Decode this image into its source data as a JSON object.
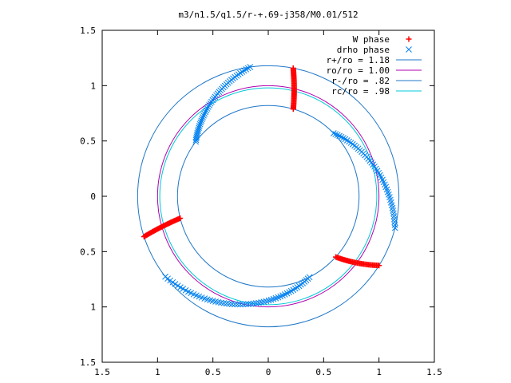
{
  "chart_data": {
    "type": "scatter",
    "title": "m3/n1.5/q1.5/r-+.69-j358/M0.01/512",
    "xlabel": "",
    "ylabel": "",
    "xlim": [
      -1.5,
      1.5
    ],
    "ylim": [
      -1.5,
      1.5
    ],
    "grid": false,
    "legend_position": "top-right",
    "x_ticks": [
      {
        "value": -1.5,
        "label": "1.5"
      },
      {
        "value": -1.0,
        "label": "1"
      },
      {
        "value": -0.5,
        "label": "0.5"
      },
      {
        "value": 0,
        "label": "0"
      },
      {
        "value": 0.5,
        "label": "0.5"
      },
      {
        "value": 1.0,
        "label": "1"
      },
      {
        "value": 1.5,
        "label": "1.5"
      }
    ],
    "y_ticks": [
      {
        "value": 1.5,
        "label": "1.5"
      },
      {
        "value": 1.0,
        "label": "1"
      },
      {
        "value": 0.5,
        "label": "0.5"
      },
      {
        "value": 0,
        "label": "0"
      },
      {
        "value": -0.5,
        "label": "0.5"
      },
      {
        "value": -1.0,
        "label": "1"
      },
      {
        "value": -1.5,
        "label": "1.5"
      }
    ],
    "circles": [
      {
        "name": "r+/ro = 1.18",
        "radius": 1.18,
        "color": "#1f77c8"
      },
      {
        "name": "ro/ro = 1.00",
        "radius": 1.0,
        "color": "#b000b0"
      },
      {
        "name": "r-/ro = .82",
        "radius": 0.82,
        "color": "#1f77c8"
      },
      {
        "name": "rc/ro = .98",
        "radius": 0.98,
        "color": "#00c8d8"
      }
    ],
    "point_series": [
      {
        "name": "W phase",
        "marker": "+",
        "color": "#ff0000",
        "segments": [
          {
            "r_from": 0.82,
            "r_to": 1.18,
            "angle_from_deg": 74,
            "angle_to_deg": 79,
            "count": 36
          },
          {
            "r_from": 0.82,
            "r_to": 1.18,
            "angle_from_deg": 194,
            "angle_to_deg": 198,
            "count": 36
          },
          {
            "r_from": 0.82,
            "r_to": 1.18,
            "angle_from_deg": 318,
            "angle_to_deg": 328,
            "count": 36
          }
        ]
      },
      {
        "name": "drho phase",
        "marker": "x",
        "color": "#0080f0",
        "segments": [
          {
            "r_from": 0.82,
            "r_to": 1.18,
            "angle_from_deg": 143,
            "angle_to_deg": 98,
            "count": 48
          },
          {
            "r_from": 0.82,
            "r_to": 1.18,
            "angle_from_deg": 44,
            "angle_to_deg": -14,
            "count": 48
          },
          {
            "r_from": 1.18,
            "r_to": 0.82,
            "angle_from_deg": 218,
            "angle_to_deg": 297,
            "count": 60
          }
        ]
      }
    ]
  }
}
